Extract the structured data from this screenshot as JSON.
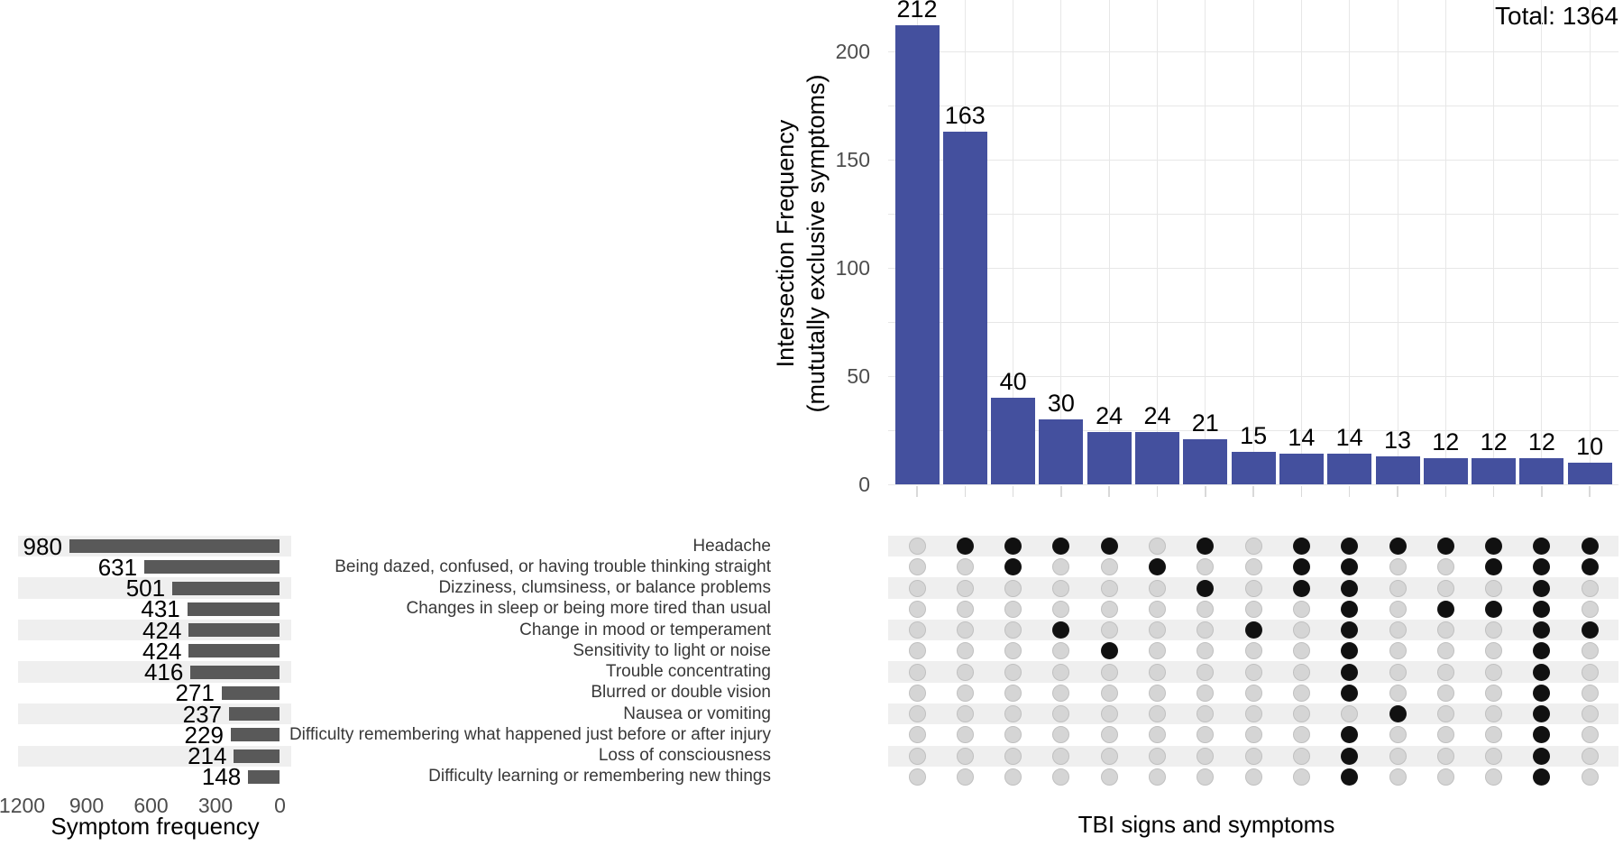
{
  "chart_data": [
    {
      "id": "intersection-frequency-chart",
      "type": "bar",
      "ylabel": "Intersection Frequency\n(mututally exclusive symptoms)",
      "xlabel": "TBI signs and symptoms",
      "annotation": "Total: 1364",
      "values": [
        212,
        163,
        40,
        30,
        24,
        24,
        21,
        15,
        14,
        14,
        13,
        12,
        12,
        12,
        10
      ],
      "yticks": [
        0,
        50,
        100,
        150,
        200
      ],
      "ylim": [
        0,
        220
      ],
      "grid": true,
      "bar_color": "#44509e",
      "gridline_color": "#e7e7e7",
      "tick_label_color": "#4d4d4d"
    },
    {
      "id": "symptom-frequency-chart",
      "type": "bar",
      "orientation": "horizontal",
      "xlabel": "Symptom frequency",
      "categories": [
        "Headache",
        "Being dazed, confused, or having trouble thinking straight",
        "Dizziness, clumsiness, or balance problems",
        "Changes in sleep or being more tired than usual",
        "Change in mood or temperament",
        "Sensitivity to light or noise",
        "Trouble concentrating",
        "Blurred or double vision",
        "Nausea or vomiting",
        "Difficulty remembering what happened just before or after injury",
        "Loss of consciousness",
        "Difficulty learning or remembering new things"
      ],
      "values": [
        980,
        631,
        501,
        431,
        424,
        424,
        416,
        271,
        237,
        229,
        214,
        148
      ],
      "xticks": [
        1200,
        900,
        600,
        300,
        0
      ],
      "xlim": [
        1200,
        0
      ],
      "bar_color": "#595959",
      "stripe_color": "#efefef",
      "label_color": "#383838"
    },
    {
      "id": "membership-matrix",
      "type": "table",
      "rows": [
        "Headache",
        "Being dazed, confused, or having trouble thinking straight",
        "Dizziness, clumsiness, or balance problems",
        "Changes in sleep or being more tired than usual",
        "Change in mood or temperament",
        "Sensitivity to light or noise",
        "Trouble concentrating",
        "Blurred or double vision",
        "Nausea or vomiting",
        "Difficulty remembering what happened just before or after injury",
        "Loss of consciousness",
        "Difficulty learning or remembering new things"
      ],
      "columns": [
        {
          "intersection_size": 212,
          "members": []
        },
        {
          "intersection_size": 163,
          "members": [
            0
          ]
        },
        {
          "intersection_size": 40,
          "members": [
            0,
            1
          ]
        },
        {
          "intersection_size": 30,
          "members": [
            0,
            4
          ]
        },
        {
          "intersection_size": 24,
          "members": [
            0,
            5
          ]
        },
        {
          "intersection_size": 24,
          "members": [
            1
          ]
        },
        {
          "intersection_size": 21,
          "members": [
            0,
            2
          ]
        },
        {
          "intersection_size": 15,
          "members": [
            4
          ]
        },
        {
          "intersection_size": 14,
          "members": [
            0,
            1,
            2
          ]
        },
        {
          "intersection_size": 14,
          "members": [
            0,
            1,
            2,
            3,
            4,
            5,
            6,
            7,
            9,
            10,
            11
          ]
        },
        {
          "intersection_size": 13,
          "members": [
            0,
            8
          ]
        },
        {
          "intersection_size": 12,
          "members": [
            0,
            3
          ]
        },
        {
          "intersection_size": 12,
          "members": [
            0,
            1,
            3
          ]
        },
        {
          "intersection_size": 12,
          "members": [
            0,
            1,
            2,
            3,
            4,
            5,
            6,
            7,
            8,
            9,
            10,
            11
          ]
        },
        {
          "intersection_size": 10,
          "members": [
            0,
            1,
            4
          ]
        }
      ],
      "dot_colors": {
        "member": "#111111",
        "non_member": "#d5d5d5",
        "non_member_border": "#c0c0c0"
      }
    }
  ]
}
